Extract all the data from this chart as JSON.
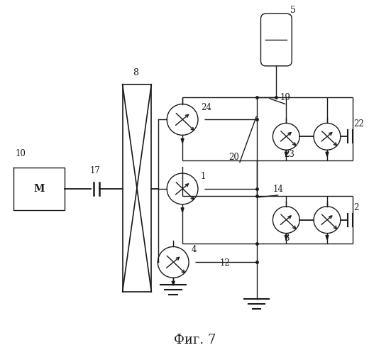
{
  "bg_color": "#ffffff",
  "line_color": "#1a1a1a",
  "title": "Фиг. 7",
  "title_fontsize": 13,
  "fig_width": 5.51,
  "fig_height": 5.0
}
